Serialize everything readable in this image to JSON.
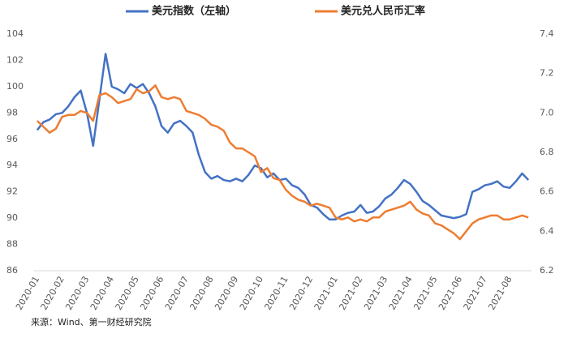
{
  "chart_data": {
    "type": "line",
    "source": "来源：Wind、第一财经研究院",
    "categories": [
      "2020-01",
      null,
      null,
      null,
      "2020-02",
      null,
      null,
      null,
      "2020-03",
      null,
      null,
      null,
      "2020-04",
      null,
      null,
      null,
      "2020-05",
      null,
      null,
      null,
      "2020-06",
      null,
      null,
      null,
      "2020-07",
      null,
      null,
      null,
      "2020-08",
      null,
      null,
      null,
      "2020-09",
      null,
      null,
      null,
      "2020-10",
      null,
      null,
      null,
      "2020-11",
      null,
      null,
      null,
      "2020-12",
      null,
      null,
      null,
      "2021-01",
      null,
      null,
      null,
      "2021-02",
      null,
      null,
      null,
      "2021-03",
      null,
      null,
      null,
      "2021-04",
      null,
      null,
      null,
      "2021-05",
      null,
      null,
      null,
      "2021-06",
      null,
      null,
      null,
      "2021-07",
      null,
      null,
      null,
      "2021-08",
      null,
      null,
      null
    ],
    "series": [
      {
        "name": "美元指数（左轴）",
        "color": "#4472c4",
        "axis": "y",
        "values": [
          96.7,
          97.3,
          97.5,
          97.9,
          98.0,
          98.5,
          99.2,
          99.7,
          98.0,
          95.5,
          99.0,
          102.5,
          100.0,
          99.8,
          99.5,
          100.2,
          99.9,
          100.2,
          99.5,
          98.5,
          97.0,
          96.5,
          97.2,
          97.4,
          97.0,
          96.5,
          94.8,
          93.5,
          93.0,
          93.2,
          92.9,
          92.8,
          93.0,
          92.8,
          93.3,
          94.0,
          93.8,
          93.1,
          93.4,
          92.9,
          93.0,
          92.5,
          92.3,
          91.8,
          91.0,
          90.8,
          90.3,
          89.9,
          89.9,
          90.2,
          90.4,
          90.5,
          91.0,
          90.4,
          90.5,
          90.9,
          91.5,
          91.8,
          92.3,
          92.9,
          92.6,
          92.0,
          91.3,
          91.0,
          90.6,
          90.2,
          90.1,
          90.0,
          90.1,
          90.3,
          92.0,
          92.2,
          92.5,
          92.6,
          92.8,
          92.4,
          92.3,
          92.8,
          93.4,
          92.9
        ]
      },
      {
        "name": "美元兑人民币汇率",
        "color": "#ed7d31",
        "axis": "y2",
        "values": [
          6.96,
          6.93,
          6.9,
          6.92,
          6.98,
          6.99,
          6.99,
          7.01,
          7.0,
          6.96,
          7.09,
          7.1,
          7.08,
          7.05,
          7.06,
          7.07,
          7.12,
          7.1,
          7.11,
          7.14,
          7.08,
          7.07,
          7.08,
          7.07,
          7.01,
          7.0,
          6.99,
          6.97,
          6.94,
          6.93,
          6.91,
          6.85,
          6.82,
          6.82,
          6.8,
          6.78,
          6.7,
          6.72,
          6.67,
          6.66,
          6.61,
          6.58,
          6.56,
          6.55,
          6.53,
          6.54,
          6.53,
          6.52,
          6.47,
          6.46,
          6.47,
          6.45,
          6.46,
          6.45,
          6.47,
          6.47,
          6.5,
          6.51,
          6.52,
          6.53,
          6.55,
          6.51,
          6.49,
          6.48,
          6.44,
          6.43,
          6.41,
          6.39,
          6.36,
          6.4,
          6.44,
          6.46,
          6.47,
          6.48,
          6.48,
          6.46,
          6.46,
          6.47,
          6.48,
          6.47
        ]
      }
    ],
    "ylim": [
      86,
      104
    ],
    "yticks": [
      86,
      88,
      90,
      92,
      94,
      96,
      98,
      100,
      102,
      104
    ],
    "y2lim": [
      6.2,
      7.4
    ],
    "y2ticks": [
      6.2,
      6.4,
      6.6,
      6.8,
      {
        "value": 7,
        "label": "7.0"
      },
      7.2,
      7.4
    ],
    "grid": false,
    "legend": "top"
  }
}
